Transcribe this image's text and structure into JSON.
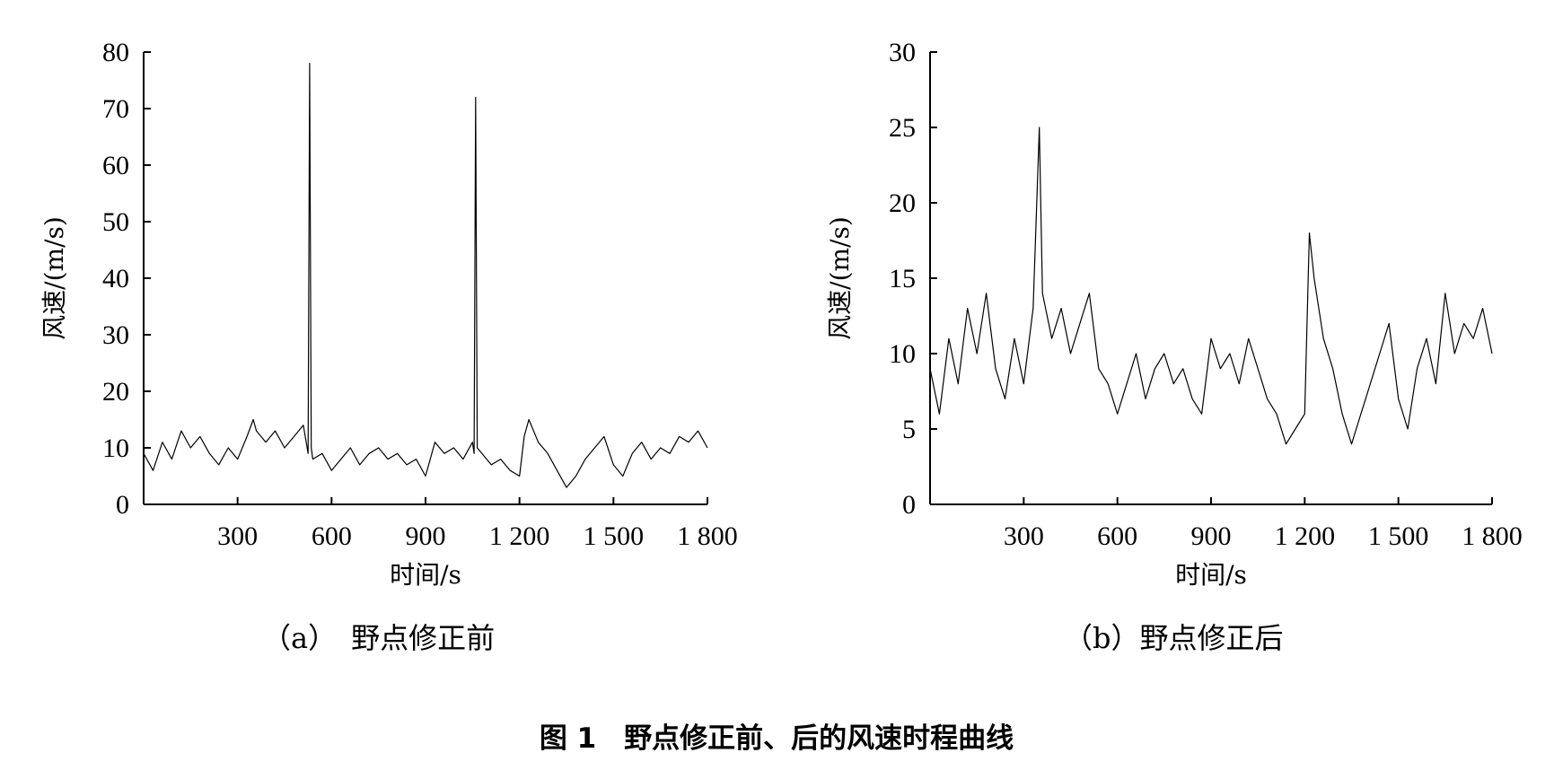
{
  "figure_caption": "图 1　野点修正前、后的风速时程曲线",
  "chart_data": [
    {
      "type": "line",
      "subcaption": "（a）　野点修正前",
      "xlabel": "时间/s",
      "ylabel": "风速/(m/s)",
      "xlim": [
        0,
        1800
      ],
      "ylim": [
        0,
        80
      ],
      "xticks": [
        300,
        600,
        900,
        1200,
        1500,
        1800
      ],
      "xtick_labels": [
        "300",
        "600",
        "900",
        "1 200",
        "1 500",
        "1 800"
      ],
      "yticks": [
        0,
        10,
        20,
        30,
        40,
        50,
        60,
        70,
        80
      ],
      "ytick_labels": [
        "0",
        "10",
        "20",
        "30",
        "40",
        "50",
        "60",
        "70",
        "80"
      ],
      "series": [
        {
          "x": [
            0,
            30,
            60,
            90,
            120,
            150,
            180,
            210,
            240,
            270,
            300,
            330,
            350,
            360,
            390,
            420,
            450,
            480,
            510,
            525,
            530,
            535,
            540,
            570,
            600,
            630,
            660,
            690,
            720,
            750,
            780,
            810,
            840,
            870,
            900,
            930,
            960,
            990,
            1020,
            1050,
            1055,
            1060,
            1065,
            1080,
            1110,
            1140,
            1170,
            1200,
            1215,
            1230,
            1260,
            1290,
            1320,
            1350,
            1380,
            1410,
            1440,
            1470,
            1500,
            1530,
            1560,
            1590,
            1620,
            1650,
            1680,
            1710,
            1740,
            1770,
            1800
          ],
          "y": [
            9,
            6,
            11,
            8,
            13,
            10,
            12,
            9,
            7,
            10,
            8,
            12,
            15,
            13,
            11,
            13,
            10,
            12,
            14,
            9,
            78,
            10,
            8,
            9,
            6,
            8,
            10,
            7,
            9,
            10,
            8,
            9,
            7,
            8,
            5,
            11,
            9,
            10,
            8,
            11,
            9,
            72,
            10,
            9,
            7,
            8,
            6,
            5,
            12,
            15,
            11,
            9,
            6,
            3,
            5,
            8,
            10,
            12,
            7,
            5,
            9,
            11,
            8,
            10,
            9,
            12,
            11,
            13,
            10
          ]
        }
      ]
    },
    {
      "type": "line",
      "subcaption": "（b）野点修正后",
      "xlabel": "时间/s",
      "ylabel": "风速/(m/s)",
      "xlim": [
        0,
        1800
      ],
      "ylim": [
        0,
        30
      ],
      "xticks": [
        300,
        600,
        900,
        1200,
        1500,
        1800
      ],
      "xtick_labels": [
        "300",
        "600",
        "900",
        "1 200",
        "1 500",
        "1 800"
      ],
      "yticks": [
        0,
        5,
        10,
        15,
        20,
        25,
        30
      ],
      "ytick_labels": [
        "0",
        "5",
        "10",
        "15",
        "20",
        "25",
        "30"
      ],
      "series": [
        {
          "x": [
            0,
            30,
            60,
            90,
            120,
            150,
            180,
            210,
            240,
            270,
            300,
            330,
            350,
            360,
            390,
            420,
            450,
            480,
            510,
            540,
            570,
            600,
            630,
            660,
            690,
            720,
            750,
            780,
            810,
            840,
            870,
            900,
            930,
            960,
            990,
            1020,
            1050,
            1080,
            1110,
            1140,
            1170,
            1200,
            1215,
            1230,
            1260,
            1290,
            1320,
            1350,
            1380,
            1410,
            1440,
            1470,
            1500,
            1530,
            1560,
            1590,
            1620,
            1650,
            1680,
            1710,
            1740,
            1770,
            1800
          ],
          "y": [
            9,
            6,
            11,
            8,
            13,
            10,
            14,
            9,
            7,
            11,
            8,
            13,
            25,
            14,
            11,
            13,
            10,
            12,
            14,
            9,
            8,
            6,
            8,
            10,
            7,
            9,
            10,
            8,
            9,
            7,
            6,
            11,
            9,
            10,
            8,
            11,
            9,
            7,
            6,
            4,
            5,
            6,
            18,
            15,
            11,
            9,
            6,
            4,
            6,
            8,
            10,
            12,
            7,
            5,
            9,
            11,
            8,
            14,
            10,
            12,
            11,
            13,
            10
          ]
        }
      ]
    }
  ]
}
